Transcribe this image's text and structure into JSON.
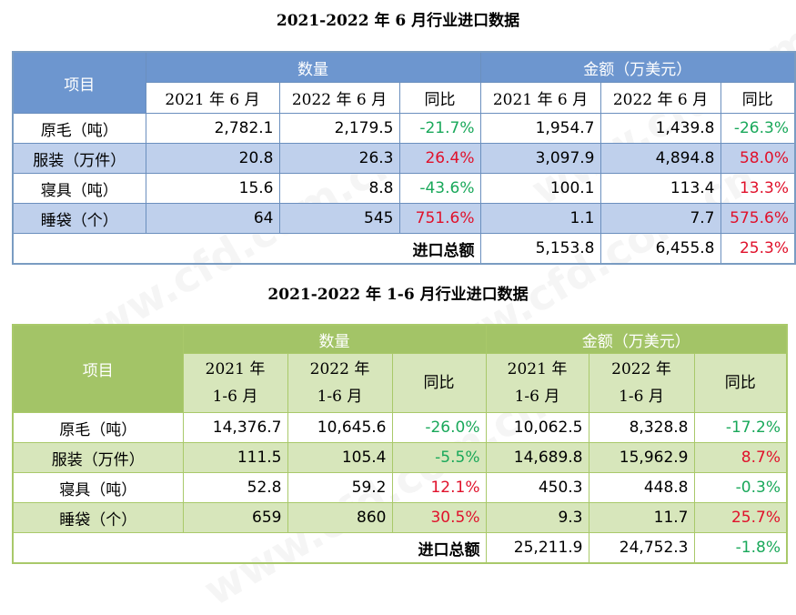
{
  "watermark": "www.cfd.com.cn",
  "colors": {
    "positive": "#e0112b",
    "negative": "#19a85a",
    "table1_header": "#6d96cf",
    "table2_header": "#a3c467"
  },
  "table1": {
    "title": "2021-2022 年 6 月行业进口数据",
    "item_header": "项目",
    "qty_header": "数量",
    "amt_header": "金额（万美元）",
    "sub": {
      "y1": "2021 年 6 月",
      "y2": "2022 年 6 月",
      "yoy": "同比"
    },
    "rows": [
      {
        "label": "原毛（吨）",
        "q1": "2,782.1",
        "q2": "2,179.5",
        "qy": "-21.7%",
        "a1": "1,954.7",
        "a2": "1,439.8",
        "ay": "-26.3%"
      },
      {
        "label": "服装（万件）",
        "q1": "20.8",
        "q2": "26.3",
        "qy": "26.4%",
        "a1": "3,097.9",
        "a2": "4,894.8",
        "ay": "58.0%"
      },
      {
        "label": "寝具（吨）",
        "q1": "15.6",
        "q2": "8.8",
        "qy": "-43.6%",
        "a1": "100.1",
        "a2": "113.4",
        "ay": "13.3%"
      },
      {
        "label": "睡袋（个）",
        "q1": "64",
        "q2": "545",
        "qy": "751.6%",
        "a1": "1.1",
        "a2": "7.7",
        "ay": "575.6%"
      }
    ],
    "total": {
      "label": "进口总额",
      "a1": "5,153.8",
      "a2": "6,455.8",
      "ay": "25.3%"
    }
  },
  "table2": {
    "title": "2021-2022 年 1-6 月行业进口数据",
    "item_header": "项目",
    "qty_header": "数量",
    "amt_header": "金额（万美元）",
    "sub": {
      "y1a": "2021 年",
      "y1b": "1-6 月",
      "y2a": "2022 年",
      "y2b": "1-6 月",
      "yoy": "同比"
    },
    "rows": [
      {
        "label": "原毛（吨）",
        "q1": "14,376.7",
        "q2": "10,645.6",
        "qy": "-26.0%",
        "a1": "10,062.5",
        "a2": "8,328.8",
        "ay": "-17.2%"
      },
      {
        "label": "服装（万件）",
        "q1": "111.5",
        "q2": "105.4",
        "qy": "-5.5%",
        "a1": "14,689.8",
        "a2": "15,962.9",
        "ay": "8.7%"
      },
      {
        "label": "寝具（吨）",
        "q1": "52.8",
        "q2": "59.2",
        "qy": "12.1%",
        "a1": "450.3",
        "a2": "448.8",
        "ay": "-0.3%"
      },
      {
        "label": "睡袋（个）",
        "q1": "659",
        "q2": "860",
        "qy": "30.5%",
        "a1": "9.3",
        "a2": "11.7",
        "ay": "25.7%"
      }
    ],
    "total": {
      "label": "进口总额",
      "a1": "25,211.9",
      "a2": "24,752.3",
      "ay": "-1.8%"
    }
  }
}
